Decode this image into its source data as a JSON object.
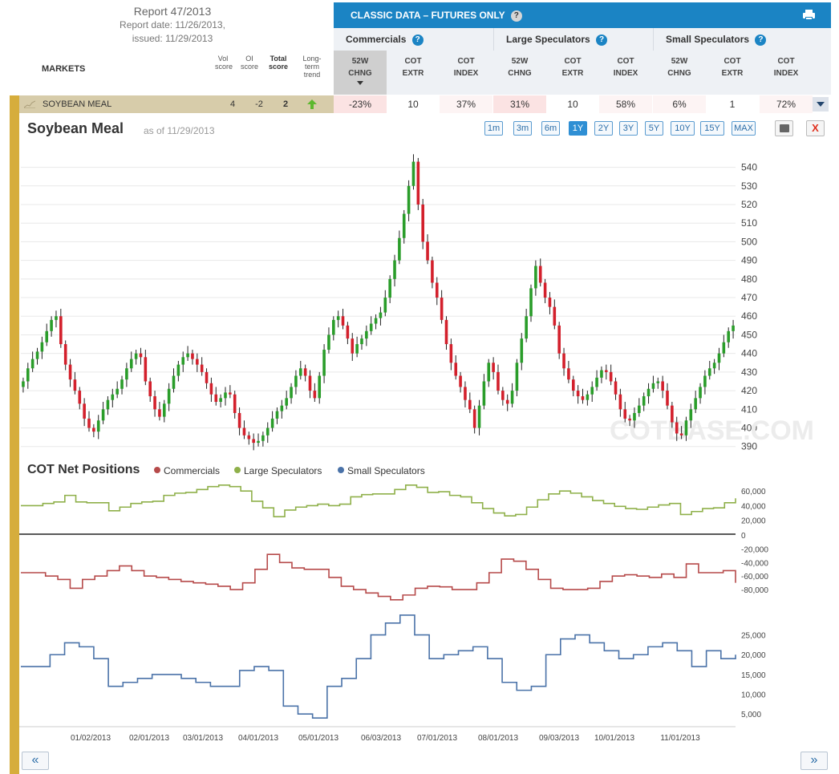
{
  "report": {
    "title": "Report 47/2013",
    "date_line": "Report date: 11/26/2013,",
    "issued_line": "issued: 11/29/2013"
  },
  "columns": {
    "markets": "MARKETS",
    "vol": "Vol score",
    "oi": "OI score",
    "total": "Total score",
    "trend": "Long-term trend"
  },
  "classic": {
    "title": "CLASSIC DATA – FUTURES ONLY",
    "help": "?",
    "print_icon": "printer-icon"
  },
  "groups": [
    {
      "label": "Commercials",
      "help": "?"
    },
    {
      "label": "Large Speculators",
      "help": "?"
    },
    {
      "label": "Small Speculators",
      "help": "?"
    }
  ],
  "subheaders": [
    {
      "l1": "52W",
      "l2": "CHNG"
    },
    {
      "l1": "COT",
      "l2": "EXTR"
    },
    {
      "l1": "COT",
      "l2": "INDEX"
    },
    {
      "l1": "52W",
      "l2": "CHNG"
    },
    {
      "l1": "COT",
      "l2": "EXTR"
    },
    {
      "l1": "COT",
      "l2": "INDEX"
    },
    {
      "l1": "52W",
      "l2": "CHNG"
    },
    {
      "l1": "COT",
      "l2": "EXTR"
    },
    {
      "l1": "COT",
      "l2": "INDEX"
    }
  ],
  "market": {
    "name": "SOYBEAN MEAL",
    "vol": "4",
    "oi": "-2",
    "total": "2",
    "trend": "up-arrow-icon",
    "cells": [
      "-23%",
      "10",
      "37%",
      "31%",
      "10",
      "58%",
      "6%",
      "1",
      "72%"
    ]
  },
  "chart": {
    "title": "Soybean Meal",
    "asof": "as of 11/29/2013",
    "ranges": [
      "1m",
      "3m",
      "6m",
      "1Y",
      "2Y",
      "3Y",
      "5Y",
      "10Y",
      "15Y",
      "MAX"
    ],
    "active_range": "1Y",
    "close_label": "X",
    "watermark": "COTBASE.COM",
    "cot_title": "COT Net Positions",
    "nav_prev": "«",
    "nav_next": "»"
  },
  "colors": {
    "up": "#2a9d2a",
    "down": "#d3202c",
    "commercials": "#b64a4a",
    "large": "#8fb04a",
    "small": "#4a72a8",
    "accent": "#1b84c4"
  },
  "chart_data": [
    {
      "type": "candlestick",
      "title": "Soybean Meal",
      "x_labels": [
        "01/02/2013",
        "02/01/2013",
        "03/01/2013",
        "04/01/2013",
        "05/01/2013",
        "06/03/2013",
        "07/01/2013",
        "08/01/2013",
        "09/03/2013",
        "10/01/2013",
        "11/01/2013"
      ],
      "y_ticks": [
        390,
        400,
        410,
        420,
        430,
        440,
        450,
        460,
        470,
        480,
        490,
        500,
        510,
        520,
        530,
        540
      ],
      "ylim": [
        386,
        548
      ],
      "close": [
        425,
        432,
        437,
        441,
        446,
        452,
        458,
        460,
        445,
        434,
        426,
        420,
        413,
        405,
        400,
        398,
        404,
        410,
        415,
        418,
        421,
        426,
        432,
        437,
        440,
        438,
        425,
        417,
        410,
        406,
        413,
        421,
        428,
        434,
        438,
        440,
        437,
        434,
        430,
        424,
        418,
        414,
        416,
        419,
        418,
        408,
        400,
        396,
        394,
        392,
        393,
        396,
        400,
        405,
        409,
        412,
        416,
        422,
        428,
        432,
        428,
        420,
        416,
        428,
        442,
        450,
        458,
        460,
        455,
        448,
        440,
        445,
        448,
        452,
        456,
        459,
        462,
        470,
        480,
        490,
        502,
        515,
        530,
        543,
        520,
        500,
        490,
        478,
        470,
        458,
        445,
        435,
        428,
        422,
        415,
        410,
        400,
        412,
        425,
        435,
        430,
        420,
        415,
        413,
        420,
        435,
        448,
        460,
        475,
        487,
        478,
        470,
        465,
        455,
        440,
        432,
        426,
        420,
        417,
        415,
        418,
        422,
        427,
        431,
        430,
        425,
        418,
        410,
        405,
        404,
        408,
        412,
        417,
        421,
        424,
        425,
        420,
        412,
        403,
        397,
        396,
        404,
        410,
        416,
        422,
        428,
        432,
        435,
        440,
        446,
        452,
        455
      ],
      "series": [
        {
          "name": "Soybean Meal",
          "values": "close"
        }
      ]
    },
    {
      "type": "line",
      "title": "COT Net Positions",
      "x_labels": [
        "01/02/2013",
        "02/01/2013",
        "03/01/2013",
        "04/01/2013",
        "05/01/2013",
        "06/03/2013",
        "07/01/2013",
        "08/01/2013",
        "09/03/2013",
        "10/01/2013",
        "11/01/2013"
      ],
      "panels": [
        {
          "series": [
            {
              "name": "Large Speculators",
              "values": [
                40000,
                40000,
                43000,
                45000,
                54000,
                45000,
                44000,
                44000,
                33000,
                38000,
                43000,
                45000,
                46000,
                54000,
                57000,
                58000,
                62000,
                66000,
                68000,
                66000,
                60000,
                46000,
                37000,
                25000,
                34000,
                38000,
                40000,
                42000,
                40000,
                42000,
                52000,
                55000,
                56000,
                56000,
                62000,
                68000,
                65000,
                58000,
                59000,
                54000,
                52000,
                44000,
                36000,
                30000,
                26000,
                28000,
                38000,
                48000,
                56000,
                60000,
                57000,
                52000,
                47000,
                43000,
                39000,
                36000,
                35000,
                38000,
                41000,
                43000,
                28000,
                32000,
                36000,
                37000,
                44000,
                50000
              ]
            }
          ],
          "y_ticks": [
            0,
            20000,
            40000,
            60000
          ]
        },
        {
          "series": [
            {
              "name": "Commercials",
              "values": [
                -55000,
                -55000,
                -60000,
                -65000,
                -78000,
                -65000,
                -60000,
                -52000,
                -45000,
                -52000,
                -60000,
                -62000,
                -65000,
                -68000,
                -70000,
                -72000,
                -75000,
                -80000,
                -70000,
                -50000,
                -28000,
                -40000,
                -48000,
                -50000,
                -50000,
                -62000,
                -75000,
                -80000,
                -85000,
                -90000,
                -95000,
                -88000,
                -78000,
                -75000,
                -76000,
                -80000,
                -80000,
                -70000,
                -55000,
                -35000,
                -38000,
                -50000,
                -65000,
                -78000,
                -80000,
                -80000,
                -78000,
                -68000,
                -60000,
                -58000,
                -60000,
                -62000,
                -57000,
                -62000,
                -42000,
                -55000,
                -55000,
                -52000,
                -70000
              ]
            }
          ],
          "y_ticks": [
            -80000,
            -60000,
            -40000,
            -20000
          ]
        },
        {
          "series": [
            {
              "name": "Small Speculators",
              "values": [
                17000,
                17000,
                20000,
                23000,
                22000,
                19000,
                12000,
                13000,
                14000,
                15000,
                15000,
                14000,
                13000,
                12000,
                12000,
                16000,
                17000,
                16000,
                7000,
                5000,
                4000,
                12000,
                14000,
                19000,
                25000,
                28000,
                30000,
                25000,
                19000,
                20000,
                21000,
                22000,
                19000,
                13000,
                11000,
                12000,
                20000,
                24000,
                25000,
                23000,
                21000,
                19000,
                20000,
                22000,
                23000,
                21000,
                17000,
                21000,
                19000,
                20000
              ]
            }
          ],
          "y_ticks": [
            5000,
            10000,
            15000,
            20000,
            25000
          ]
        }
      ]
    }
  ]
}
